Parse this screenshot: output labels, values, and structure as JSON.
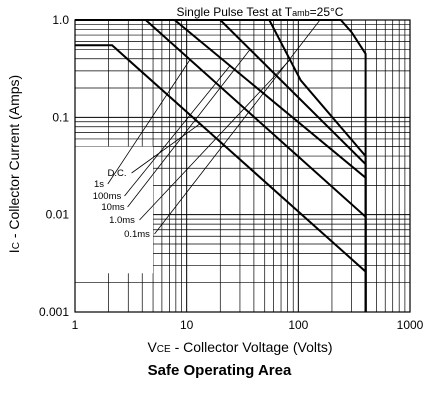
{
  "caption": "Safe Operating Area",
  "chart_data": {
    "type": "line",
    "x_scale": "log",
    "y_scale": "log",
    "xlim": [
      1,
      1000
    ],
    "ylim": [
      0.001,
      1.0
    ],
    "x_ticks": [
      "1",
      "10",
      "100",
      "1000"
    ],
    "y_ticks": [
      "1.0",
      "0.1",
      "0.01",
      "0.001"
    ],
    "title": "Single Pulse Test at T",
    "title_sub": "amb",
    "title_end": "=25°C",
    "xlabel_prefix": "V",
    "xlabel_sub": "CE",
    "xlabel_rest": " - Collector Voltage (Volts)",
    "ylabel_prefix": "I",
    "ylabel_sub": "C",
    "ylabel_rest": " - Collector Current (Amps)",
    "series": [
      {
        "name": "D.C.",
        "points": [
          [
            1,
            0.55
          ],
          [
            2.15,
            0.55
          ],
          [
            400,
            0.0026
          ],
          [
            400,
            0.001
          ]
        ]
      },
      {
        "name": "1s",
        "points": [
          [
            1,
            1.0
          ],
          [
            4.3,
            1.0
          ],
          [
            400,
            0.0095
          ],
          [
            400,
            0.001
          ]
        ]
      },
      {
        "name": "100ms",
        "points": [
          [
            1,
            1.0
          ],
          [
            7.8,
            1.0
          ],
          [
            400,
            0.024
          ],
          [
            400,
            0.001
          ]
        ]
      },
      {
        "name": "10ms",
        "points": [
          [
            1,
            1.0
          ],
          [
            20,
            1.0
          ],
          [
            400,
            0.033
          ],
          [
            400,
            0.001
          ]
        ]
      },
      {
        "name": "1.0ms",
        "points": [
          [
            1,
            1.0
          ],
          [
            55,
            1.0
          ],
          [
            105,
            0.24
          ],
          [
            400,
            0.04
          ],
          [
            400,
            0.001
          ]
        ]
      },
      {
        "name": "0.1ms",
        "points": [
          [
            1,
            1.0
          ],
          [
            240,
            1.0
          ],
          [
            300,
            0.75
          ],
          [
            400,
            0.45
          ],
          [
            400,
            0.001
          ]
        ]
      }
    ],
    "callouts": [
      {
        "label": "D.C.",
        "series": "D.C."
      },
      {
        "label": "1s",
        "series": "1s"
      },
      {
        "label": "100ms",
        "series": "100ms"
      },
      {
        "label": "10ms",
        "series": "10ms"
      },
      {
        "label": "1.0ms",
        "series": "1.0ms"
      },
      {
        "label": "0.1ms",
        "series": "0.1ms"
      }
    ],
    "grid": true,
    "legend": "none"
  }
}
